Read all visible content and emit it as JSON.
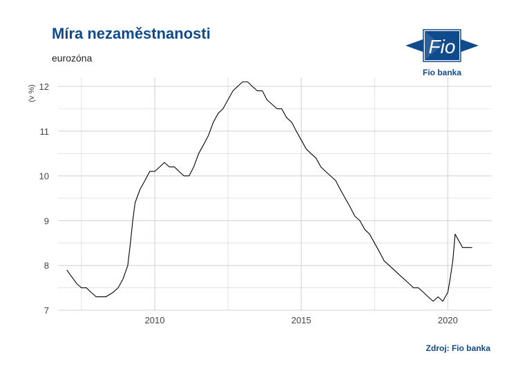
{
  "header": {
    "title": "Míra nezaměstnanosti",
    "subtitle": "eurozóna"
  },
  "logo": {
    "mark_text": "Fio",
    "name": "Fio banka",
    "color": "#0e4a8c"
  },
  "footer": {
    "source": "Zdroj: Fio banka"
  },
  "chart_data": {
    "type": "line",
    "title": "Míra nezaměstnanosti",
    "subtitle": "eurozóna",
    "xlabel": "",
    "ylabel": "(v %)",
    "xlim": [
      2006.7,
      2021.5
    ],
    "ylim": [
      7,
      12.2
    ],
    "xticks": [
      2010,
      2015,
      2020
    ],
    "yticks": [
      7,
      8,
      9,
      10,
      11,
      12
    ],
    "grid": true,
    "line_color": "#000000",
    "series": [
      {
        "x": [
          2007.0,
          2007.33,
          2007.5,
          2007.67,
          2007.83,
          2008.0,
          2008.33,
          2008.58,
          2008.75,
          2008.92,
          2009.08,
          2009.17,
          2009.25,
          2009.33,
          2009.5,
          2009.67,
          2009.83,
          2010.0,
          2010.17,
          2010.33,
          2010.5,
          2010.67,
          2010.83,
          2011.0,
          2011.17,
          2011.33,
          2011.5,
          2011.67,
          2011.83,
          2012.0,
          2012.17,
          2012.33,
          2012.5,
          2012.67,
          2012.83,
          2013.0,
          2013.17,
          2013.33,
          2013.5,
          2013.67,
          2013.83,
          2014.0,
          2014.17,
          2014.33,
          2014.5,
          2014.67,
          2014.83,
          2015.0,
          2015.17,
          2015.33,
          2015.5,
          2015.67,
          2015.83,
          2016.0,
          2016.17,
          2016.33,
          2016.5,
          2016.67,
          2016.83,
          2017.0,
          2017.17,
          2017.33,
          2017.5,
          2017.67,
          2017.83,
          2018.0,
          2018.17,
          2018.33,
          2018.5,
          2018.67,
          2018.83,
          2019.0,
          2019.17,
          2019.33,
          2019.5,
          2019.67,
          2019.83,
          2020.0,
          2020.08,
          2020.17,
          2020.25,
          2020.33,
          2020.42,
          2020.5,
          2020.58,
          2020.67,
          2020.75,
          2020.83
        ],
        "y": [
          7.9,
          7.6,
          7.5,
          7.5,
          7.4,
          7.3,
          7.3,
          7.4,
          7.5,
          7.7,
          8.0,
          8.5,
          9.0,
          9.4,
          9.7,
          9.9,
          10.1,
          10.1,
          10.2,
          10.3,
          10.2,
          10.2,
          10.1,
          10.0,
          10.0,
          10.2,
          10.5,
          10.7,
          10.9,
          11.2,
          11.4,
          11.5,
          11.7,
          11.9,
          12.0,
          12.1,
          12.1,
          12.0,
          11.9,
          11.9,
          11.7,
          11.6,
          11.5,
          11.5,
          11.3,
          11.2,
          11.0,
          10.8,
          10.6,
          10.5,
          10.4,
          10.2,
          10.1,
          10.0,
          9.9,
          9.7,
          9.5,
          9.3,
          9.1,
          9.0,
          8.8,
          8.7,
          8.5,
          8.3,
          8.1,
          8.0,
          7.9,
          7.8,
          7.7,
          7.6,
          7.5,
          7.5,
          7.4,
          7.3,
          7.2,
          7.3,
          7.2,
          7.4,
          7.7,
          8.1,
          8.7,
          8.6,
          8.5,
          8.4,
          8.4,
          8.4,
          8.4,
          8.4
        ]
      }
    ]
  }
}
